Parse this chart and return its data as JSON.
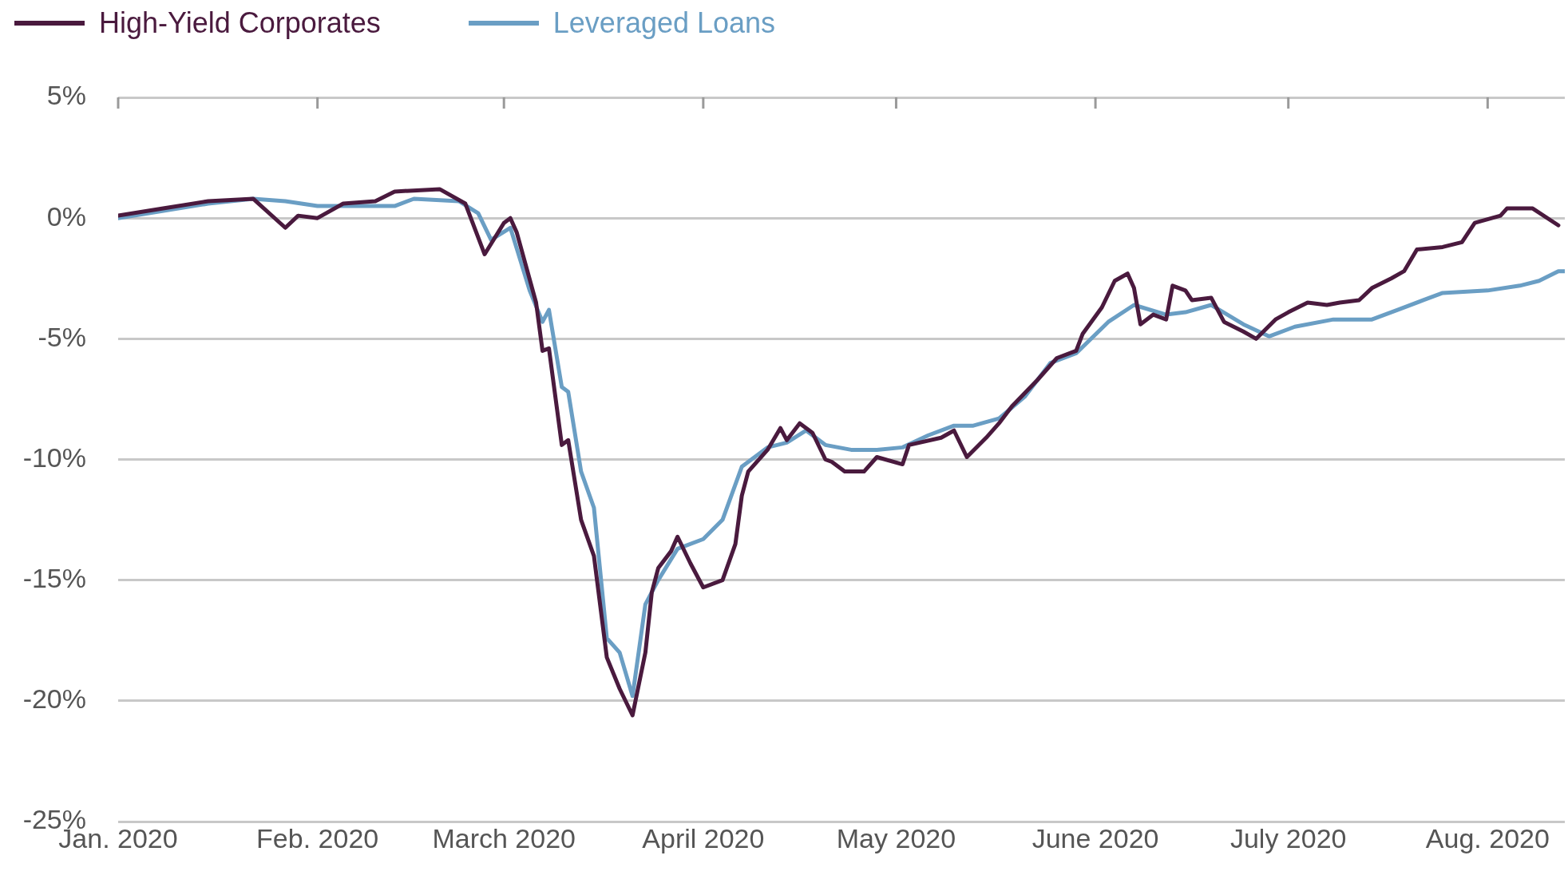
{
  "chart_data": {
    "type": "line",
    "legend": "top left",
    "grid": "y",
    "marker": "none",
    "line_style": "solid",
    "xlim": [
      "2020-01-01",
      "2020-08-13"
    ],
    "xticks": [
      {
        "value": "2020-01-01",
        "label": "Jan. 2020"
      },
      {
        "value": "2020-02-01",
        "label": "Feb. 2020"
      },
      {
        "value": "2020-03-01",
        "label": "March 2020"
      },
      {
        "value": "2020-04-01",
        "label": "April 2020"
      },
      {
        "value": "2020-05-01",
        "label": "May 2020"
      },
      {
        "value": "2020-06-01",
        "label": "June 2020"
      },
      {
        "value": "2020-07-01",
        "label": "July 2020"
      },
      {
        "value": "2020-08-01",
        "label": "Aug. 2020"
      }
    ],
    "ylim": [
      -25,
      5
    ],
    "yticks": [
      {
        "value": 5,
        "label": "5%"
      },
      {
        "value": 0,
        "label": "0%"
      },
      {
        "value": -5,
        "label": "-5%"
      },
      {
        "value": -10,
        "label": "-10%"
      },
      {
        "value": -15,
        "label": "-15%"
      },
      {
        "value": -20,
        "label": "-20%"
      },
      {
        "value": -25,
        "label": "-25%"
      }
    ],
    "series": [
      {
        "name": "High-Yield Corporates",
        "color": "#4a1a3e",
        "x": [
          "2020-01-01",
          "2020-01-08",
          "2020-01-15",
          "2020-01-22",
          "2020-01-27",
          "2020-01-29",
          "2020-02-01",
          "2020-02-05",
          "2020-02-10",
          "2020-02-13",
          "2020-02-20",
          "2020-02-24",
          "2020-02-27",
          "2020-03-01",
          "2020-03-02",
          "2020-03-03",
          "2020-03-06",
          "2020-03-07",
          "2020-03-08",
          "2020-03-10",
          "2020-03-11",
          "2020-03-13",
          "2020-03-15",
          "2020-03-17",
          "2020-03-19",
          "2020-03-21",
          "2020-03-23",
          "2020-03-24",
          "2020-03-25",
          "2020-03-27",
          "2020-03-28",
          "2020-03-30",
          "2020-04-01",
          "2020-04-04",
          "2020-04-06",
          "2020-04-07",
          "2020-04-08",
          "2020-04-11",
          "2020-04-13",
          "2020-04-14",
          "2020-04-16",
          "2020-04-18",
          "2020-04-20",
          "2020-04-21",
          "2020-04-23",
          "2020-04-26",
          "2020-04-28",
          "2020-05-02",
          "2020-05-03",
          "2020-05-08",
          "2020-05-10",
          "2020-05-12",
          "2020-05-15",
          "2020-05-17",
          "2020-05-19",
          "2020-05-23",
          "2020-05-26",
          "2020-05-29",
          "2020-05-30",
          "2020-06-02",
          "2020-06-04",
          "2020-06-06",
          "2020-06-07",
          "2020-06-08",
          "2020-06-10",
          "2020-06-12",
          "2020-06-13",
          "2020-06-15",
          "2020-06-16",
          "2020-06-19",
          "2020-06-21",
          "2020-06-24",
          "2020-06-26",
          "2020-06-29",
          "2020-07-01",
          "2020-07-04",
          "2020-07-07",
          "2020-07-09",
          "2020-07-12",
          "2020-07-14",
          "2020-07-17",
          "2020-07-19",
          "2020-07-21",
          "2020-07-25",
          "2020-07-28",
          "2020-07-30",
          "2020-08-03",
          "2020-08-04",
          "2020-08-08",
          "2020-08-12"
        ],
        "values": [
          0.1,
          0.4,
          0.7,
          0.8,
          -0.4,
          0.1,
          0.0,
          0.6,
          0.7,
          1.1,
          1.2,
          0.6,
          -1.5,
          -0.2,
          0.0,
          -0.6,
          -3.5,
          -5.5,
          -5.4,
          -9.4,
          -9.2,
          -12.5,
          -14,
          -18.2,
          -19.5,
          -20.6,
          -18,
          -15.5,
          -14.5,
          -13.8,
          -13.2,
          -14.3,
          -15.3,
          -15,
          -13.5,
          -11.5,
          -10.5,
          -9.6,
          -8.7,
          -9.2,
          -8.5,
          -8.9,
          -10,
          -10.1,
          -10.5,
          -10.5,
          -9.9,
          -10.2,
          -9.4,
          -9.1,
          -8.8,
          -9.9,
          -9.1,
          -8.5,
          -7.8,
          -6.7,
          -5.8,
          -5.5,
          -4.8,
          -3.7,
          -2.6,
          -2.3,
          -2.9,
          -4.4,
          -4.0,
          -4.2,
          -2.8,
          -3.0,
          -3.4,
          -3.3,
          -4.3,
          -4.7,
          -5.0,
          -4.2,
          -3.9,
          -3.5,
          -3.6,
          -3.5,
          -3.4,
          -2.9,
          -2.5,
          -2.2,
          -1.3,
          -1.2,
          -1.0,
          -0.2,
          0.1,
          0.4,
          0.4,
          -0.3
        ]
      },
      {
        "name": "Leveraged Loans",
        "color": "#6a9ec4",
        "x": [
          "2020-01-01",
          "2020-01-15",
          "2020-01-22",
          "2020-01-27",
          "2020-02-01",
          "2020-02-10",
          "2020-02-13",
          "2020-02-16",
          "2020-02-23",
          "2020-02-26",
          "2020-02-28",
          "2020-03-02",
          "2020-03-05",
          "2020-03-07",
          "2020-03-08",
          "2020-03-10",
          "2020-03-11",
          "2020-03-13",
          "2020-03-15",
          "2020-03-17",
          "2020-03-19",
          "2020-03-21",
          "2020-03-23",
          "2020-03-25",
          "2020-03-28",
          "2020-04-01",
          "2020-04-04",
          "2020-04-07",
          "2020-04-11",
          "2020-04-14",
          "2020-04-17",
          "2020-04-20",
          "2020-04-24",
          "2020-04-28",
          "2020-05-02",
          "2020-05-06",
          "2020-05-10",
          "2020-05-13",
          "2020-05-17",
          "2020-05-21",
          "2020-05-25",
          "2020-05-29",
          "2020-06-03",
          "2020-06-07",
          "2020-06-12",
          "2020-06-15",
          "2020-06-19",
          "2020-06-24",
          "2020-06-28",
          "2020-07-02",
          "2020-07-08",
          "2020-07-14",
          "2020-07-18",
          "2020-07-22",
          "2020-07-25",
          "2020-08-01",
          "2020-08-06",
          "2020-08-09",
          "2020-08-12",
          "2020-08-13"
        ],
        "values": [
          0.0,
          0.6,
          0.8,
          0.7,
          0.5,
          0.5,
          0.5,
          0.8,
          0.7,
          0.2,
          -0.9,
          -0.4,
          -3.0,
          -4.3,
          -3.8,
          -7.0,
          -7.2,
          -10.5,
          -12,
          -17.4,
          -18,
          -19.8,
          -16.0,
          -15.0,
          -13.7,
          -13.3,
          -12.5,
          -10.3,
          -9.5,
          -9.3,
          -8.8,
          -9.4,
          -9.6,
          -9.6,
          -9.5,
          -9.0,
          -8.6,
          -8.6,
          -8.3,
          -7.4,
          -6.0,
          -5.6,
          -4.3,
          -3.6,
          -4.0,
          -3.9,
          -3.6,
          -4.4,
          -4.9,
          -4.5,
          -4.2,
          -4.2,
          -3.8,
          -3.4,
          -3.1,
          -3.0,
          -2.8,
          -2.6,
          -2.2,
          -2.2
        ]
      }
    ]
  }
}
